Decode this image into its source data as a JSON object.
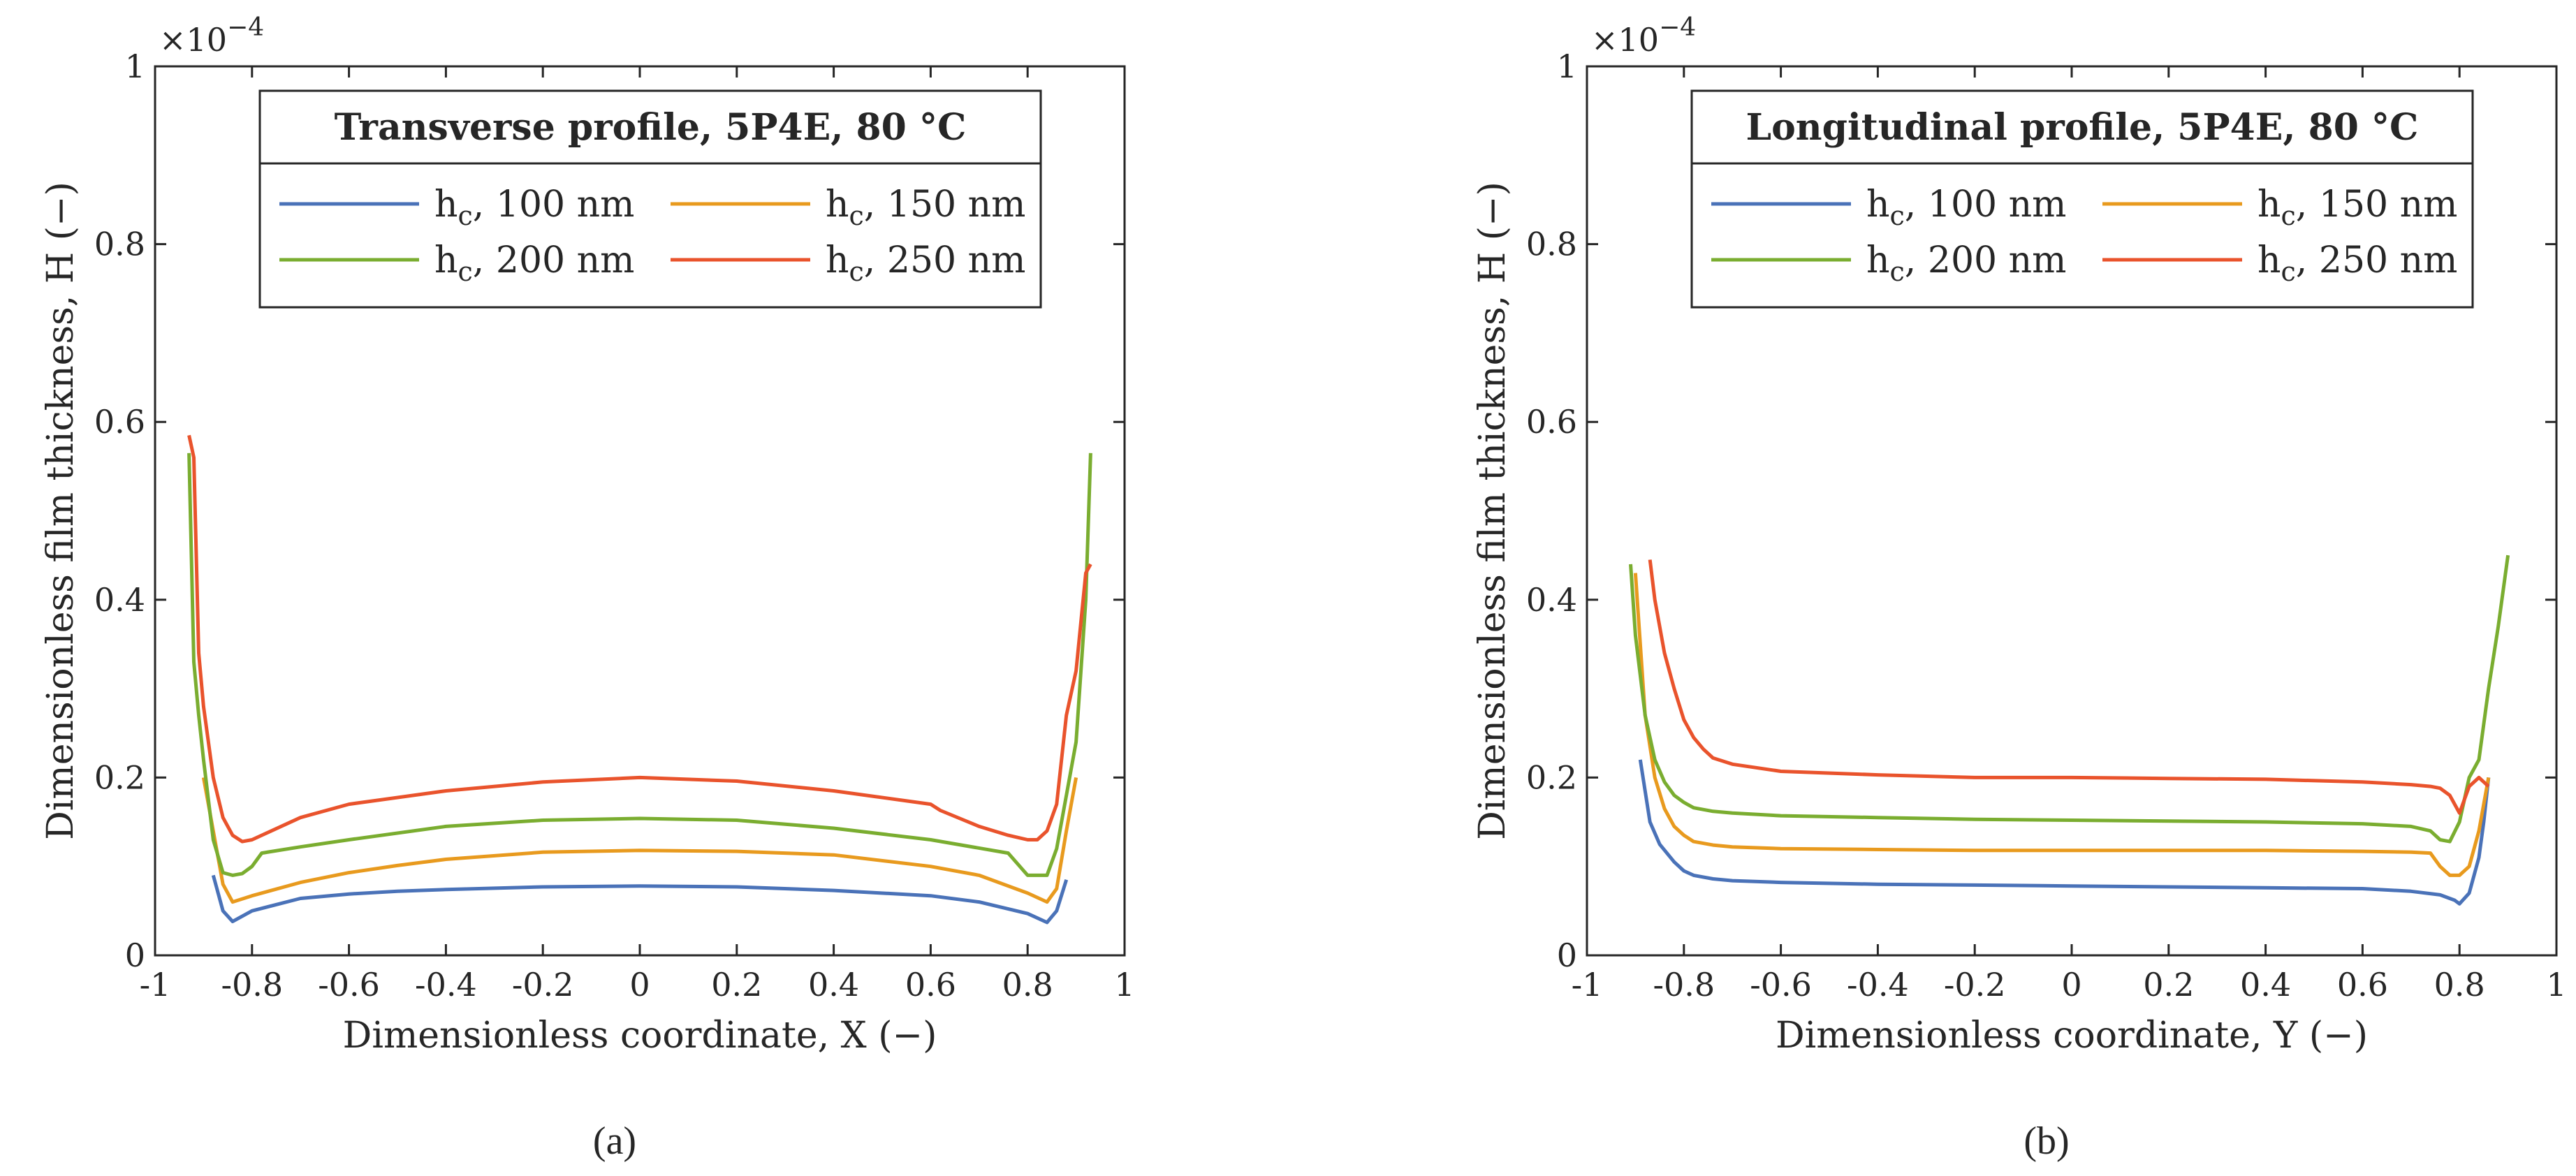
{
  "colors": {
    "h100": "#4a72b8",
    "h150": "#e89a1e",
    "h200": "#7aad30",
    "h250": "#e9532c",
    "axis": "#262626"
  },
  "chart_data": [
    {
      "type": "line",
      "panel_label": "(a)",
      "legend_title": "Transverse profile, 5P4E, 80 °C",
      "legend_placement": "top-center",
      "xlabel": "Dimensionless coordinate, X (−)",
      "ylabel": "Dimensionless film thickness, H (−)",
      "y_exponent": "×10",
      "y_exponent_power": "−4",
      "xlim": [
        -1,
        1
      ],
      "ylim": [
        0,
        1
      ],
      "grid": false,
      "xticks": [
        "-1",
        "-0.8",
        "-0.6",
        "-0.4",
        "-0.2",
        "0",
        "0.2",
        "0.4",
        "0.6",
        "0.8",
        "1"
      ],
      "yticks": [
        "0",
        "0.2",
        "0.4",
        "0.6",
        "0.8",
        "1"
      ],
      "series": [
        {
          "name_main": "h",
          "name_sub": "c",
          "name_rest": ", 100 nm",
          "color_key": "h100",
          "x": [
            -0.88,
            -0.86,
            -0.84,
            -0.8,
            -0.7,
            -0.6,
            -0.5,
            -0.4,
            -0.2,
            0,
            0.2,
            0.4,
            0.6,
            0.7,
            0.8,
            0.84,
            0.86,
            0.88
          ],
          "y": [
            0.09,
            0.05,
            0.038,
            0.05,
            0.064,
            0.069,
            0.072,
            0.074,
            0.077,
            0.078,
            0.077,
            0.073,
            0.067,
            0.06,
            0.047,
            0.037,
            0.05,
            0.085
          ]
        },
        {
          "name_main": "h",
          "name_sub": "c",
          "name_rest": ", 150 nm",
          "color_key": "h150",
          "x": [
            -0.9,
            -0.88,
            -0.86,
            -0.84,
            -0.8,
            -0.7,
            -0.6,
            -0.5,
            -0.4,
            -0.2,
            0,
            0.2,
            0.4,
            0.6,
            0.7,
            0.8,
            0.84,
            0.86,
            0.88,
            0.9
          ],
          "y": [
            0.2,
            0.14,
            0.08,
            0.06,
            0.067,
            0.082,
            0.093,
            0.101,
            0.108,
            0.116,
            0.118,
            0.117,
            0.113,
            0.1,
            0.09,
            0.07,
            0.06,
            0.075,
            0.14,
            0.2
          ]
        },
        {
          "name_main": "h",
          "name_sub": "c",
          "name_rest": ", 200 nm",
          "color_key": "h200",
          "x": [
            -0.93,
            -0.92,
            -0.91,
            -0.9,
            -0.88,
            -0.86,
            -0.84,
            -0.82,
            -0.8,
            -0.78,
            -0.7,
            -0.6,
            -0.4,
            -0.2,
            0,
            0.2,
            0.4,
            0.6,
            0.76,
            0.8,
            0.84,
            0.86,
            0.88,
            0.9,
            0.92,
            0.93
          ],
          "y": [
            0.565,
            0.33,
            0.27,
            0.22,
            0.13,
            0.093,
            0.09,
            0.092,
            0.1,
            0.115,
            0.122,
            0.13,
            0.145,
            0.152,
            0.154,
            0.152,
            0.143,
            0.13,
            0.115,
            0.09,
            0.09,
            0.12,
            0.18,
            0.24,
            0.4,
            0.565
          ]
        },
        {
          "name_main": "h",
          "name_sub": "c",
          "name_rest": ", 250 nm",
          "color_key": "h250",
          "x": [
            -0.93,
            -0.92,
            -0.91,
            -0.9,
            -0.88,
            -0.86,
            -0.84,
            -0.82,
            -0.8,
            -0.78,
            -0.7,
            -0.6,
            -0.4,
            -0.2,
            0,
            0.2,
            0.4,
            0.6,
            0.62,
            0.7,
            0.76,
            0.8,
            0.82,
            0.84,
            0.86,
            0.88,
            0.9,
            0.92,
            0.93
          ],
          "y": [
            0.585,
            0.56,
            0.34,
            0.28,
            0.2,
            0.155,
            0.135,
            0.128,
            0.13,
            0.135,
            0.155,
            0.17,
            0.185,
            0.195,
            0.2,
            0.196,
            0.185,
            0.17,
            0.163,
            0.145,
            0.135,
            0.13,
            0.13,
            0.14,
            0.17,
            0.27,
            0.32,
            0.43,
            0.44
          ]
        }
      ]
    },
    {
      "type": "line",
      "panel_label": "(b)",
      "legend_title": "Longitudinal profile, 5P4E, 80 °C",
      "legend_placement": "top-center",
      "xlabel": "Dimensionless coordinate, Y (−)",
      "ylabel": "Dimensionless film thickness, H (−)",
      "y_exponent": "×10",
      "y_exponent_power": "−4",
      "xlim": [
        -1,
        1
      ],
      "ylim": [
        0,
        1
      ],
      "grid": false,
      "xticks": [
        "-1",
        "-0.8",
        "-0.6",
        "-0.4",
        "-0.2",
        "0",
        "0.2",
        "0.4",
        "0.6",
        "0.8",
        "1"
      ],
      "yticks": [
        "0",
        "0.2",
        "0.4",
        "0.6",
        "0.8",
        "1"
      ],
      "series": [
        {
          "name_main": "h",
          "name_sub": "c",
          "name_rest": ", 100 nm",
          "color_key": "h100",
          "x": [
            -0.89,
            -0.87,
            -0.85,
            -0.82,
            -0.8,
            -0.78,
            -0.74,
            -0.7,
            -0.6,
            -0.4,
            -0.2,
            0,
            0.2,
            0.4,
            0.6,
            0.7,
            0.76,
            0.79,
            0.8,
            0.82,
            0.84,
            0.85,
            0.86
          ],
          "y": [
            0.22,
            0.15,
            0.125,
            0.105,
            0.095,
            0.09,
            0.086,
            0.084,
            0.082,
            0.08,
            0.079,
            0.078,
            0.077,
            0.076,
            0.075,
            0.072,
            0.068,
            0.062,
            0.058,
            0.07,
            0.11,
            0.15,
            0.2
          ]
        },
        {
          "name_main": "h",
          "name_sub": "c",
          "name_rest": ", 150 nm",
          "color_key": "h150",
          "x": [
            -0.9,
            -0.88,
            -0.86,
            -0.84,
            -0.82,
            -0.8,
            -0.78,
            -0.74,
            -0.7,
            -0.6,
            -0.4,
            -0.2,
            0,
            0.2,
            0.4,
            0.6,
            0.7,
            0.74,
            0.76,
            0.78,
            0.8,
            0.82,
            0.84,
            0.86
          ],
          "y": [
            0.43,
            0.27,
            0.2,
            0.165,
            0.145,
            0.135,
            0.128,
            0.124,
            0.122,
            0.12,
            0.119,
            0.118,
            0.118,
            0.118,
            0.118,
            0.117,
            0.116,
            0.115,
            0.1,
            0.09,
            0.09,
            0.1,
            0.14,
            0.2
          ]
        },
        {
          "name_main": "h",
          "name_sub": "c",
          "name_rest": ", 200 nm",
          "color_key": "h200",
          "x": [
            -0.91,
            -0.9,
            -0.88,
            -0.86,
            -0.84,
            -0.82,
            -0.8,
            -0.78,
            -0.74,
            -0.7,
            -0.6,
            -0.4,
            -0.2,
            0,
            0.2,
            0.4,
            0.6,
            0.7,
            0.74,
            0.76,
            0.78,
            0.8,
            0.82,
            0.84,
            0.86,
            0.88,
            0.9
          ],
          "y": [
            0.44,
            0.36,
            0.27,
            0.22,
            0.195,
            0.18,
            0.172,
            0.166,
            0.162,
            0.16,
            0.157,
            0.155,
            0.153,
            0.152,
            0.151,
            0.15,
            0.148,
            0.145,
            0.14,
            0.13,
            0.128,
            0.15,
            0.2,
            0.22,
            0.3,
            0.37,
            0.45
          ]
        },
        {
          "name_main": "h",
          "name_sub": "c",
          "name_rest": ", 250 nm",
          "color_key": "h250",
          "x": [
            -0.87,
            -0.86,
            -0.84,
            -0.82,
            -0.8,
            -0.78,
            -0.76,
            -0.74,
            -0.7,
            -0.6,
            -0.4,
            -0.2,
            0,
            0.2,
            0.4,
            0.6,
            0.7,
            0.74,
            0.76,
            0.78,
            0.8,
            0.82,
            0.84,
            0.86
          ],
          "y": [
            0.445,
            0.4,
            0.34,
            0.3,
            0.265,
            0.245,
            0.232,
            0.222,
            0.215,
            0.207,
            0.203,
            0.2,
            0.2,
            0.199,
            0.198,
            0.195,
            0.192,
            0.19,
            0.188,
            0.18,
            0.16,
            0.19,
            0.2,
            0.19
          ]
        }
      ]
    }
  ]
}
